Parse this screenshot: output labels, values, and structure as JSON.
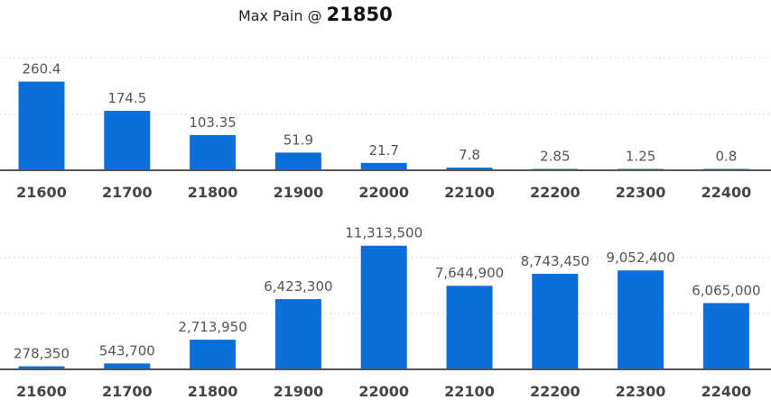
{
  "title": {
    "prefix": "Max Pain @ ",
    "value": "21850"
  },
  "colors": {
    "bar": "#0a6fd8",
    "grid": "#d6d6d6",
    "axis": "#555555"
  },
  "chart_data": [
    {
      "type": "bar",
      "categories": [
        "21600",
        "21700",
        "21800",
        "21900",
        "22000",
        "22100",
        "22200",
        "22300",
        "22400"
      ],
      "values": [
        260.4,
        174.5,
        103.35,
        51.9,
        21.7,
        7.8,
        2.85,
        1.25,
        0.8
      ],
      "value_labels": [
        "260.4",
        "174.5",
        "103.35",
        "51.9",
        "21.7",
        "7.8",
        "2.85",
        "1.25",
        "0.8"
      ],
      "ylim": [
        0,
        500
      ],
      "grid": true
    },
    {
      "type": "bar",
      "categories": [
        "21600",
        "21700",
        "21800",
        "21900",
        "22000",
        "22100",
        "22200",
        "22300",
        "22400"
      ],
      "values": [
        278350,
        543700,
        2713950,
        6423300,
        11313500,
        7644900,
        8743450,
        9052400,
        6065000
      ],
      "value_labels": [
        "278,350",
        "543,700",
        "2,713,950",
        "6,423,300",
        "11,313,500",
        "7,644,900",
        "8,743,450",
        "9,052,400",
        "6,065,000"
      ],
      "ylim": [
        0,
        15000000
      ],
      "grid": true
    }
  ]
}
